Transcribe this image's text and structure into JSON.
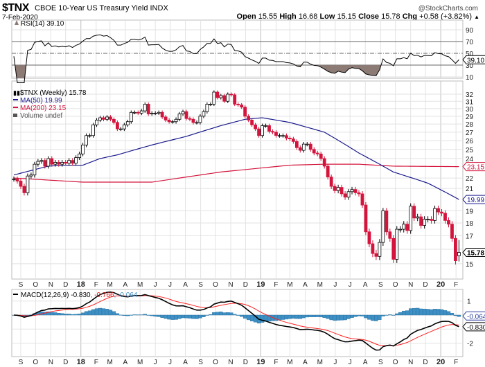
{
  "header": {
    "symbol": "$TNX",
    "description": "CBOE 10-Year US Treasury Yield INDX",
    "brand": "@StockCharts.com",
    "date": "7-Feb-2020",
    "open_label": "Open",
    "open": "15.55",
    "high_label": "High",
    "high": "16.68",
    "low_label": "Low",
    "low": "15.15",
    "close_label": "Close",
    "close": "15.78",
    "chg_label": "Chg",
    "chg": "+0.58 (+3.82%)",
    "chg_arrow": "▲"
  },
  "rsi_panel": {
    "label": "RSI(14) 39.10",
    "value_tag": "39.10",
    "ticks": [
      "90",
      "70",
      "50",
      "30",
      "10"
    ],
    "shade_color": "#8c7b75"
  },
  "main_panel": {
    "legend": [
      {
        "text": "$TNX (Weekly) 15.78",
        "color": "#000000"
      },
      {
        "text": "MA(50) 19.99",
        "color": "#1a1a8c"
      },
      {
        "text": "MA(200) 23.15",
        "color": "#d4143c"
      },
      {
        "text": "Volume undef",
        "color": "#555555"
      }
    ],
    "price_ticks": [
      "32",
      "31",
      "30",
      "29",
      "28",
      "27",
      "26",
      "25",
      "24",
      "22",
      "21",
      "19",
      "18",
      "17",
      "16",
      "15"
    ],
    "tags": {
      "ma200": "23.15",
      "ma50": "19.99",
      "close": "15.78"
    }
  },
  "macd_panel": {
    "label_prefix": "MACD(12,26,9) -0.830",
    "label_signal": ", -0.766",
    "label_hist": ", -0.064",
    "ticks": [
      "1",
      "-2"
    ],
    "tags": {
      "hist": "-0.064",
      "macd": "-0.830"
    }
  },
  "x_axis": [
    {
      "label": "S",
      "date": "2017-09-01"
    },
    {
      "label": "O",
      "date": "2017-10-01"
    },
    {
      "label": "N",
      "date": "2017-11-01"
    },
    {
      "label": "D",
      "date": "2017-12-01"
    },
    {
      "label": "18",
      "date": "2018-01-01",
      "year": true
    },
    {
      "label": "F",
      "date": "2018-02-01"
    },
    {
      "label": "M",
      "date": "2018-03-01"
    },
    {
      "label": "A",
      "date": "2018-04-01"
    },
    {
      "label": "M",
      "date": "2018-05-01"
    },
    {
      "label": "J",
      "date": "2018-06-01"
    },
    {
      "label": "J",
      "date": "2018-07-01"
    },
    {
      "label": "A",
      "date": "2018-08-01"
    },
    {
      "label": "S",
      "date": "2018-09-01"
    },
    {
      "label": "O",
      "date": "2018-10-01"
    },
    {
      "label": "N",
      "date": "2018-11-01"
    },
    {
      "label": "D",
      "date": "2018-12-01"
    },
    {
      "label": "19",
      "date": "2019-01-01",
      "year": true
    },
    {
      "label": "F",
      "date": "2019-02-01"
    },
    {
      "label": "M",
      "date": "2019-03-01"
    },
    {
      "label": "A",
      "date": "2019-04-01"
    },
    {
      "label": "M",
      "date": "2019-05-01"
    },
    {
      "label": "J",
      "date": "2019-06-01"
    },
    {
      "label": "J",
      "date": "2019-07-01"
    },
    {
      "label": "A",
      "date": "2019-08-01"
    },
    {
      "label": "S",
      "date": "2019-09-01"
    },
    {
      "label": "O",
      "date": "2019-10-01"
    },
    {
      "label": "N",
      "date": "2019-11-01"
    },
    {
      "label": "D",
      "date": "2019-12-01"
    },
    {
      "label": "20",
      "date": "2020-01-01",
      "year": true
    },
    {
      "label": "F",
      "date": "2020-02-01"
    }
  ],
  "chart_data": {
    "type": "candlestick",
    "interval": "weekly",
    "start_date": "2017-08-18",
    "scale": "log",
    "ylim": [
      14.2,
      33
    ],
    "colors": {
      "up": "#ffffff",
      "down": "#d4143c",
      "ma50": "#1a1a8c",
      "ma200": "#d4143c",
      "macd": "#000000",
      "signal": "#ff2020",
      "hist": "#3d8fc4"
    },
    "close": [
      21.9,
      21.7,
      21.2,
      20.6,
      22.2,
      22.3,
      23.4,
      23.7,
      23.8,
      23.2,
      24.0,
      23.4,
      23.6,
      23.4,
      23.6,
      23.5,
      23.8,
      23.5,
      24.1,
      24.5,
      25.5,
      26.6,
      26.6,
      27.9,
      28.5,
      28.8,
      28.6,
      28.9,
      28.6,
      28.2,
      27.4,
      27.4,
      27.9,
      28.3,
      29.5,
      29.5,
      29.4,
      29.7,
      30.6,
      29.3,
      29.4,
      29.4,
      29.5,
      28.9,
      28.5,
      28.3,
      28.3,
      28.6,
      29.3,
      29.6,
      28.7,
      28.6,
      28.2,
      28.2,
      29.0,
      29.6,
      30.6,
      30.6,
      32.3,
      31.5,
      31.8,
      31.0,
      32.0,
      31.9,
      30.6,
      30.5,
      30.2,
      29.0,
      28.5,
      27.9,
      27.4,
      26.6,
      27.8,
      27.8,
      27.1,
      27.0,
      26.6,
      26.6,
      26.6,
      26.3,
      26.2,
      25.9,
      25.2,
      24.9,
      25.6,
      25.6,
      25.0,
      24.6,
      24.5,
      24.0,
      23.2,
      22.1,
      21.2,
      20.8,
      21.1,
      20.5,
      20.2,
      20.7,
      20.9,
      20.6,
      20.5,
      19.5,
      17.3,
      16.4,
      15.7,
      15.5,
      16.5,
      19.0,
      17.3,
      16.8,
      15.3,
      17.5,
      17.5,
      17.9,
      17.4,
      19.4,
      18.4,
      18.5,
      17.8,
      18.3,
      18.3,
      18.2,
      19.2,
      18.9,
      18.8,
      18.2,
      17.9,
      16.8,
      15.2,
      15.78
    ],
    "last_bar": {
      "open": 15.55,
      "high": 16.68,
      "low": 15.15,
      "close": 15.78
    },
    "ma50": [
      [
        0,
        22.3
      ],
      [
        10,
        23.2
      ],
      [
        15,
        23.3
      ],
      [
        20,
        23.3
      ],
      [
        25,
        24.0
      ],
      [
        30,
        24.4
      ],
      [
        40,
        25.5
      ],
      [
        50,
        26.5
      ],
      [
        60,
        27.8
      ],
      [
        67,
        28.6
      ],
      [
        72,
        28.8
      ],
      [
        80,
        28.2
      ],
      [
        90,
        27.0
      ],
      [
        100,
        24.6
      ],
      [
        110,
        22.6
      ],
      [
        120,
        21.5
      ],
      [
        129,
        19.99
      ]
    ],
    "ma200": [
      [
        0,
        22.0
      ],
      [
        20,
        21.6
      ],
      [
        40,
        21.6
      ],
      [
        60,
        22.6
      ],
      [
        80,
        23.3
      ],
      [
        90,
        23.4
      ],
      [
        100,
        23.4
      ],
      [
        110,
        23.2
      ],
      [
        129,
        23.15
      ]
    ],
    "rsi_levels": [
      70,
      50,
      30
    ],
    "macd_params": [
      12,
      26,
      9
    ]
  }
}
